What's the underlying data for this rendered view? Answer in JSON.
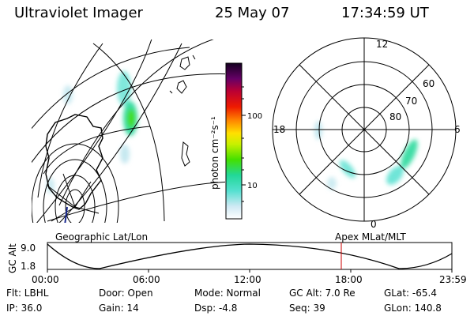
{
  "header": {
    "instrument": "Ultraviolet Imager",
    "date": "25 May 07",
    "time": "17:34:59 UT"
  },
  "colorbar": {
    "unit_label": "photon cm⁻²s⁻¹",
    "ticks": [
      "100",
      "10"
    ]
  },
  "polar_plot": {
    "mlt_labels": [
      "12",
      "18",
      "6",
      "0"
    ],
    "lat_labels": [
      "60",
      "70",
      "80"
    ]
  },
  "left_panel_caption": "Geographic Lat/Lon",
  "right_panel_caption": "Apex MLat/MLT",
  "timeline": {
    "y_axis_label": "GC Alt",
    "y_ticks": [
      "9.0",
      "1.8"
    ],
    "x_ticks": [
      "00:00",
      "06:00",
      "12:00",
      "18:00",
      "23:59"
    ],
    "current_time_marker_color": "#cc0000"
  },
  "status": {
    "filter": "Flt: LBHL",
    "ip": "IP: 36.0",
    "door": "Door: Open",
    "gain": "Gain: 14",
    "mode": "Mode: Normal",
    "dsp": "Dsp:   -4.8",
    "gc_alt": "GC Alt: 7.0 Re",
    "seq": "Seq: 39",
    "glat": "GLat: -65.4",
    "glon": "GLon: 140.8"
  }
}
